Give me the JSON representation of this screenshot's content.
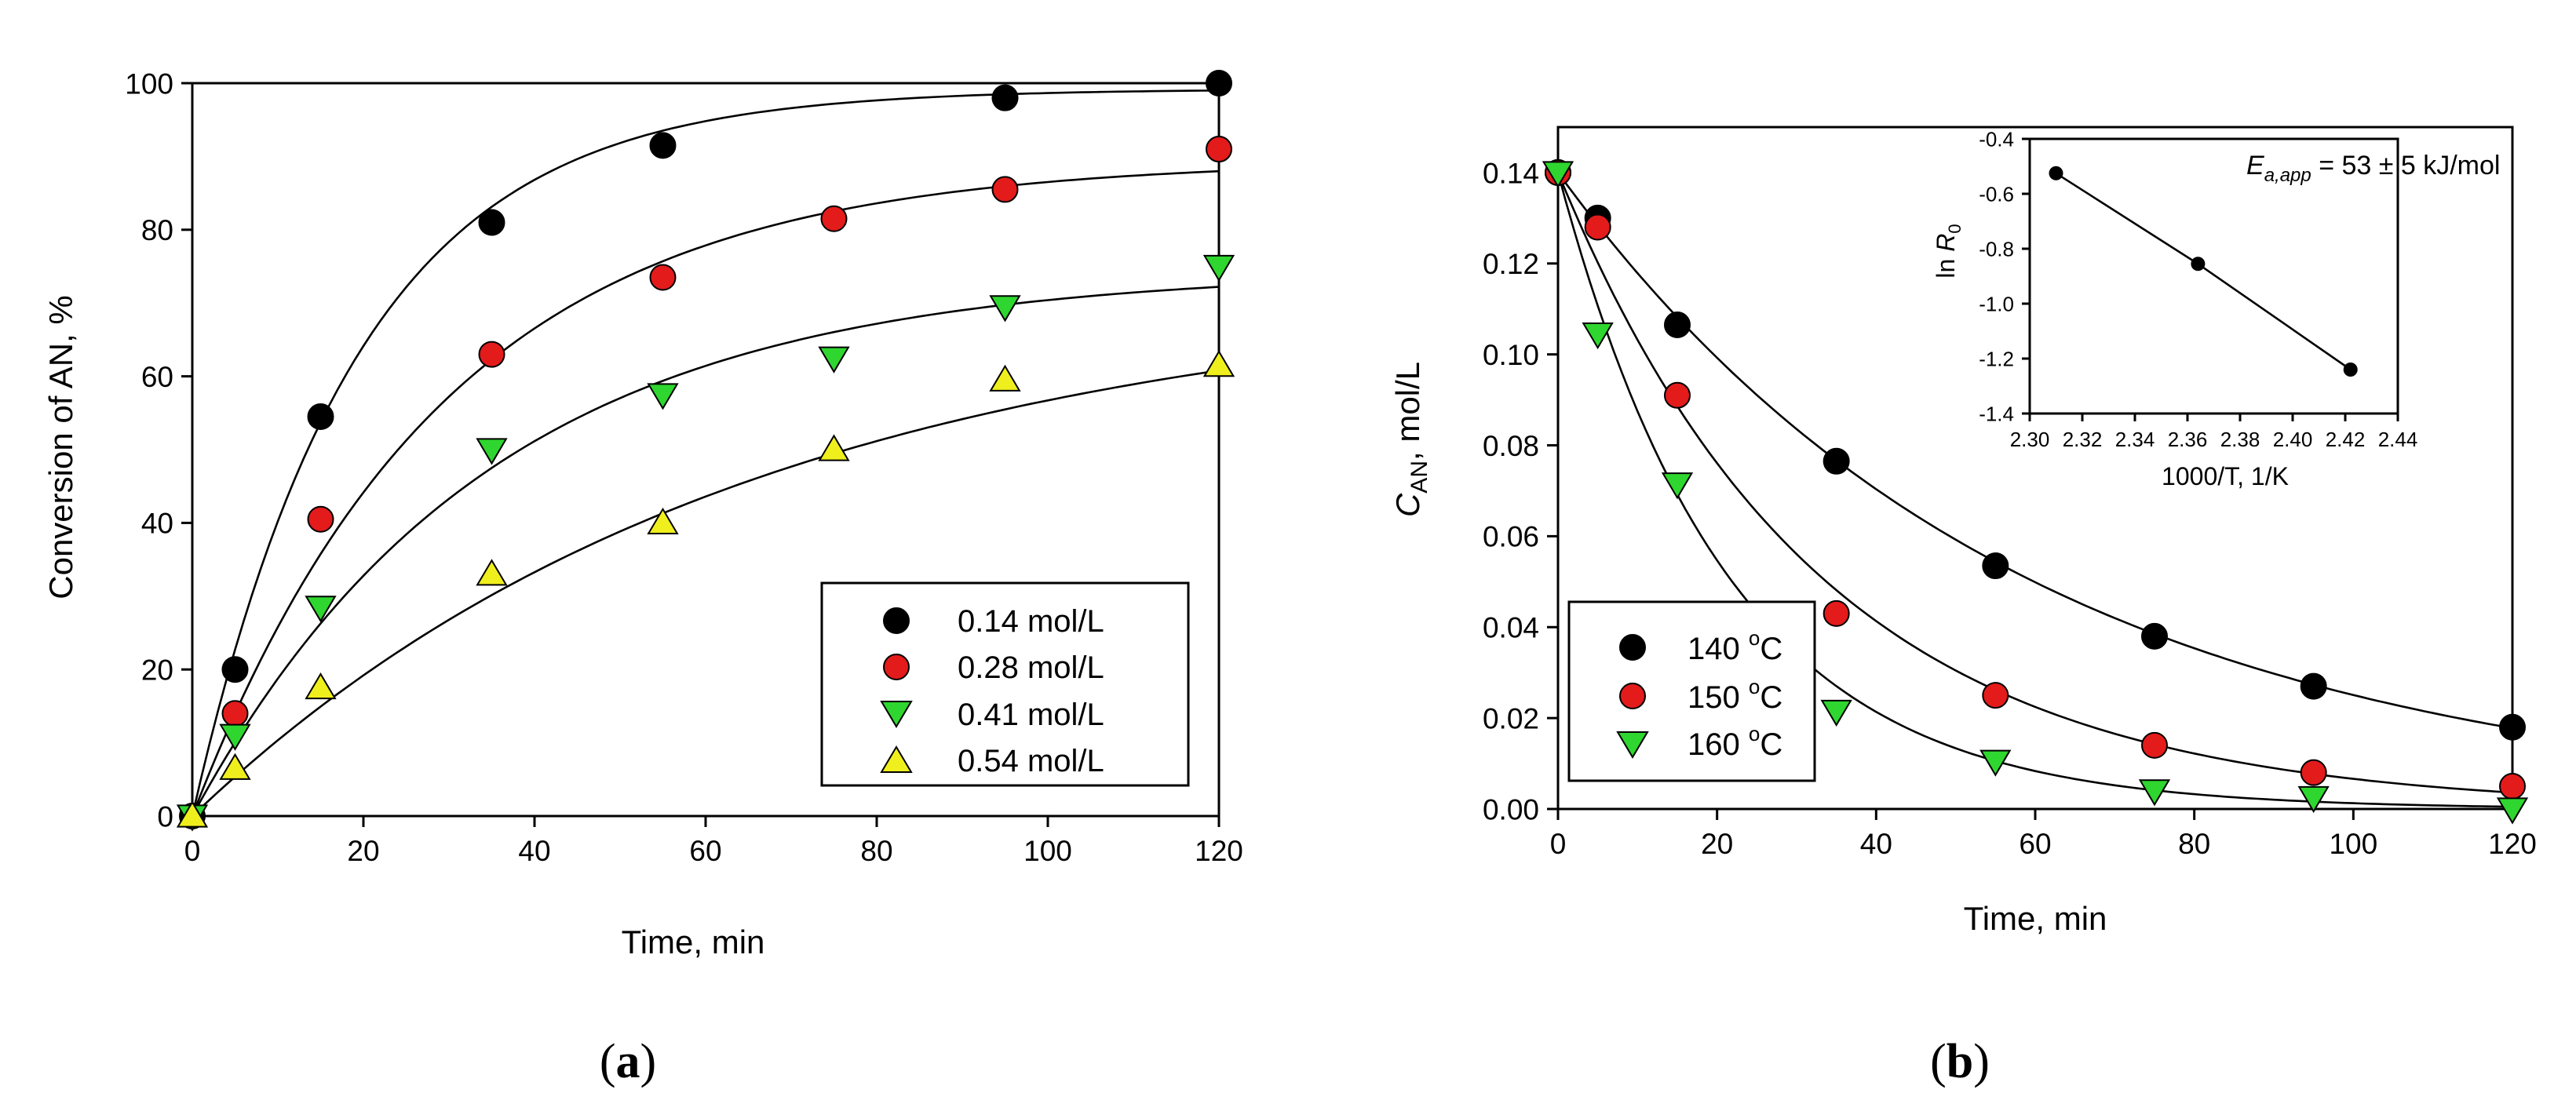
{
  "colors": {
    "black": "#000000",
    "red": "#e31b1b",
    "green": "#2fd62f",
    "yellow": "#f0ef1e"
  },
  "chart_data": [
    {
      "type": "scatter",
      "panel_label": "a",
      "xlabel": "Time, min",
      "ylabel": "Conversion of AN, %",
      "xlim": [
        0,
        120
      ],
      "ylim": [
        0,
        100
      ],
      "xticks": [
        "0",
        "20",
        "40",
        "60",
        "80",
        "100",
        "120"
      ],
      "yticks": [
        "0",
        "20",
        "40",
        "60",
        "80",
        "100"
      ],
      "legend_position": "bottom-right",
      "series": [
        {
          "name": "0.14 mol/L",
          "marker": "circle",
          "color": "#000000",
          "x": [
            0,
            5,
            15,
            35,
            55,
            95,
            120
          ],
          "y": [
            0,
            20,
            54.5,
            81,
            91.5,
            98,
            100
          ],
          "fit": {
            "a": 99.2,
            "k": 0.052
          }
        },
        {
          "name": "0.28 mol/L",
          "marker": "circle",
          "color": "#e31b1b",
          "x": [
            5,
            15,
            35,
            55,
            75,
            95,
            120
          ],
          "y": [
            14,
            40.5,
            63,
            73.5,
            81.5,
            85.5,
            91
          ],
          "fit": {
            "a": 89.5,
            "k": 0.034
          }
        },
        {
          "name": "0.41 mol/L",
          "marker": "triangle-down",
          "color": "#2fd62f",
          "x": [
            0,
            5,
            15,
            35,
            55,
            75,
            95,
            120
          ],
          "y": [
            0,
            11,
            28.5,
            50,
            57.5,
            62.5,
            69.5,
            75
          ],
          "fit": {
            "a": 74.5,
            "k": 0.029
          }
        },
        {
          "name": "0.54 mol/L",
          "marker": "triangle-up",
          "color": "#f0ef1e",
          "x": [
            0,
            5,
            15,
            35,
            55,
            75,
            95,
            120
          ],
          "y": [
            0,
            6.5,
            17.5,
            33,
            40,
            50,
            59.5,
            61.5
          ],
          "fit": {
            "a": 72,
            "k": 0.0155
          }
        }
      ]
    },
    {
      "type": "scatter",
      "panel_label": "b",
      "xlabel": "Time, min",
      "ylabel_main": "C",
      "ylabel_sub": "AN",
      "ylabel_rest": ", mol/L",
      "xlim": [
        0,
        120
      ],
      "ylim": [
        0,
        0.15
      ],
      "xticks": [
        "0",
        "20",
        "40",
        "60",
        "80",
        "100",
        "120"
      ],
      "yticks": [
        "0.00",
        "0.02",
        "0.04",
        "0.06",
        "0.08",
        "0.10",
        "0.12",
        "0.14"
      ],
      "legend_position": "bottom-left",
      "series": [
        {
          "name_main": "140 ",
          "name_sup": "o",
          "name_rest": "C",
          "marker": "circle",
          "color": "#000000",
          "x": [
            0,
            5,
            15,
            35,
            55,
            75,
            95,
            120
          ],
          "y": [
            0.14,
            0.13,
            0.1065,
            0.0765,
            0.0535,
            0.038,
            0.027,
            0.018
          ],
          "fit": {
            "c0": 0.14,
            "k": 0.0172
          }
        },
        {
          "name_main": "150 ",
          "name_sup": "o",
          "name_rest": "C",
          "marker": "circle",
          "color": "#e31b1b",
          "x": [
            0,
            5,
            15,
            35,
            55,
            75,
            95,
            120
          ],
          "y": [
            0.14,
            0.128,
            0.091,
            0.043,
            0.025,
            0.014,
            0.008,
            0.005
          ],
          "fit": {
            "c0": 0.14,
            "k": 0.0305
          }
        },
        {
          "name_main": "160 ",
          "name_sup": "o",
          "name_rest": "C",
          "marker": "triangle-down",
          "color": "#2fd62f",
          "x": [
            0,
            5,
            15,
            35,
            55,
            75,
            95,
            120
          ],
          "y": [
            0.14,
            0.1045,
            0.0715,
            0.0215,
            0.0105,
            0.004,
            0.0025,
            0.0
          ],
          "fit": {
            "c0": 0.14,
            "k": 0.047
          }
        }
      ],
      "inset": {
        "type": "line",
        "xlabel": "1000/T, 1/K",
        "ylabel_main": "ln ",
        "ylabel_italic": "R",
        "ylabel_sub": "0",
        "xlim": [
          2.3,
          2.44
        ],
        "ylim": [
          -1.4,
          -0.4
        ],
        "xticks": [
          "2.30",
          "2.32",
          "2.34",
          "2.36",
          "2.38",
          "2.40",
          "2.42",
          "2.44"
        ],
        "yticks": [
          "-1.4",
          "-1.2",
          "-1.0",
          "-0.8",
          "-0.6",
          "-0.4"
        ],
        "x": [
          2.31,
          2.364,
          2.422
        ],
        "y": [
          -0.525,
          -0.855,
          -1.24
        ],
        "annotation_main": "E",
        "annotation_sub": "a,app",
        "annotation_rest": " = 53 ± 5 kJ/mol"
      }
    }
  ]
}
